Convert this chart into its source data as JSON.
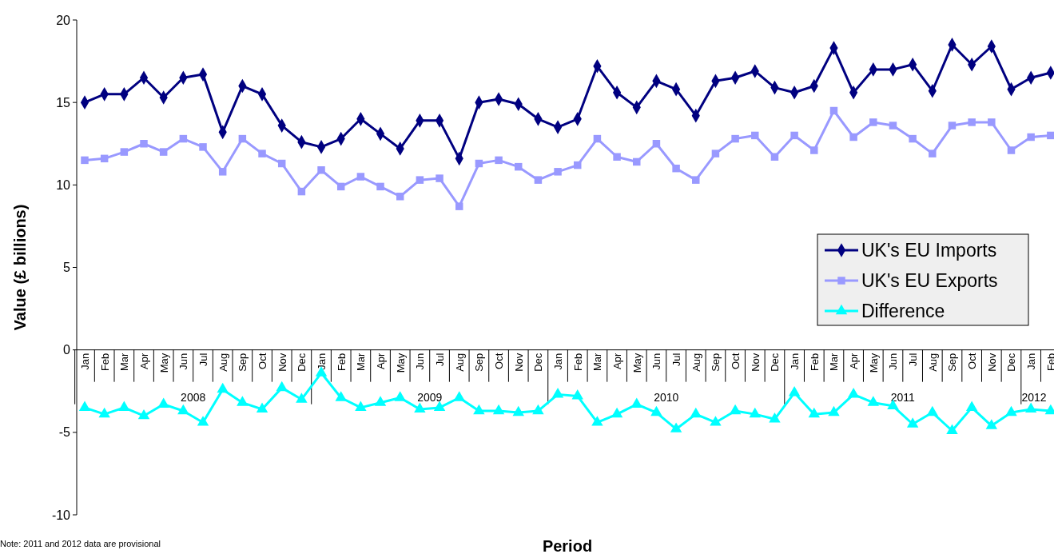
{
  "chart_data": {
    "type": "line",
    "xlabel": "Period",
    "ylabel": "Value (£ billions)",
    "categories": [
      "Jan",
      "Feb",
      "Mar",
      "Apr",
      "May",
      "Jun",
      "Jul",
      "Aug",
      "Sep",
      "Oct",
      "Nov",
      "Dec",
      "Jan",
      "Feb",
      "Mar",
      "Apr",
      "May",
      "Jun",
      "Jul",
      "Aug",
      "Sep",
      "Oct",
      "Nov",
      "Dec",
      "Jan",
      "Feb",
      "Mar",
      "Apr",
      "May",
      "Jun",
      "Jul",
      "Aug",
      "Sep",
      "Oct",
      "Nov",
      "Dec",
      "Jan",
      "Feb",
      "Mar",
      "Apr",
      "May",
      "Jun",
      "Jul",
      "Aug",
      "Sep",
      "Oct",
      "Nov",
      "Dec",
      "Jan",
      "Feb"
    ],
    "series": [
      {
        "name": "UK's EU Imports",
        "color": "#000080",
        "marker": "diamond",
        "values": [
          15.0,
          15.5,
          15.5,
          16.5,
          15.3,
          16.5,
          16.7,
          13.2,
          16.0,
          15.5,
          13.6,
          12.6,
          12.3,
          12.8,
          14.0,
          13.1,
          12.2,
          13.9,
          13.9,
          11.6,
          15.0,
          15.2,
          14.9,
          14.0,
          13.5,
          14.0,
          17.2,
          15.6,
          14.7,
          16.3,
          15.8,
          14.2,
          16.3,
          16.5,
          16.9,
          15.9,
          15.6,
          16.0,
          18.3,
          15.6,
          17.0,
          17.0,
          17.3,
          15.7,
          18.5,
          17.3,
          18.4,
          15.8,
          16.5,
          16.8
        ]
      },
      {
        "name": "UK's EU Exports",
        "color": "#9999ff",
        "marker": "square",
        "values": [
          11.5,
          11.6,
          12.0,
          12.5,
          12.0,
          12.8,
          12.3,
          10.8,
          12.8,
          11.9,
          11.3,
          9.6,
          10.9,
          9.9,
          10.5,
          9.9,
          9.3,
          10.3,
          10.4,
          8.7,
          11.3,
          11.5,
          11.1,
          10.3,
          10.8,
          11.2,
          12.8,
          11.7,
          11.4,
          12.5,
          11.0,
          10.3,
          11.9,
          12.8,
          13.0,
          11.7,
          13.0,
          12.1,
          14.5,
          12.9,
          13.8,
          13.6,
          12.8,
          11.9,
          13.6,
          13.8,
          13.8,
          12.1,
          12.9,
          13.0
        ]
      },
      {
        "name": "Difference",
        "color": "#00ffff",
        "marker": "triangle",
        "values": [
          -3.5,
          -3.9,
          -3.5,
          -4.0,
          -3.3,
          -3.7,
          -4.4,
          -2.4,
          -3.2,
          -3.6,
          -2.3,
          -3.0,
          -1.4,
          -2.9,
          -3.5,
          -3.2,
          -2.9,
          -3.6,
          -3.5,
          -2.9,
          -3.7,
          -3.7,
          -3.8,
          -3.7,
          -2.7,
          -2.8,
          -4.4,
          -3.9,
          -3.3,
          -3.8,
          -4.8,
          -3.9,
          -4.4,
          -3.7,
          -3.9,
          -4.2,
          -2.6,
          -3.9,
          -3.8,
          -2.7,
          -3.2,
          -3.4,
          -4.5,
          -3.8,
          -4.9,
          -3.5,
          -4.6,
          -3.8,
          -3.6,
          -3.7
        ]
      }
    ],
    "ylim": [
      -10,
      20
    ],
    "yticks": [
      -10,
      -5,
      0,
      5,
      10,
      15,
      20
    ],
    "grid": false,
    "legend": "right",
    "line_style": "solid",
    "annotations": [
      "2008",
      "2009",
      "2010",
      "2011",
      "2012",
      "Note: 2011 and 2012 data are provisional"
    ]
  }
}
